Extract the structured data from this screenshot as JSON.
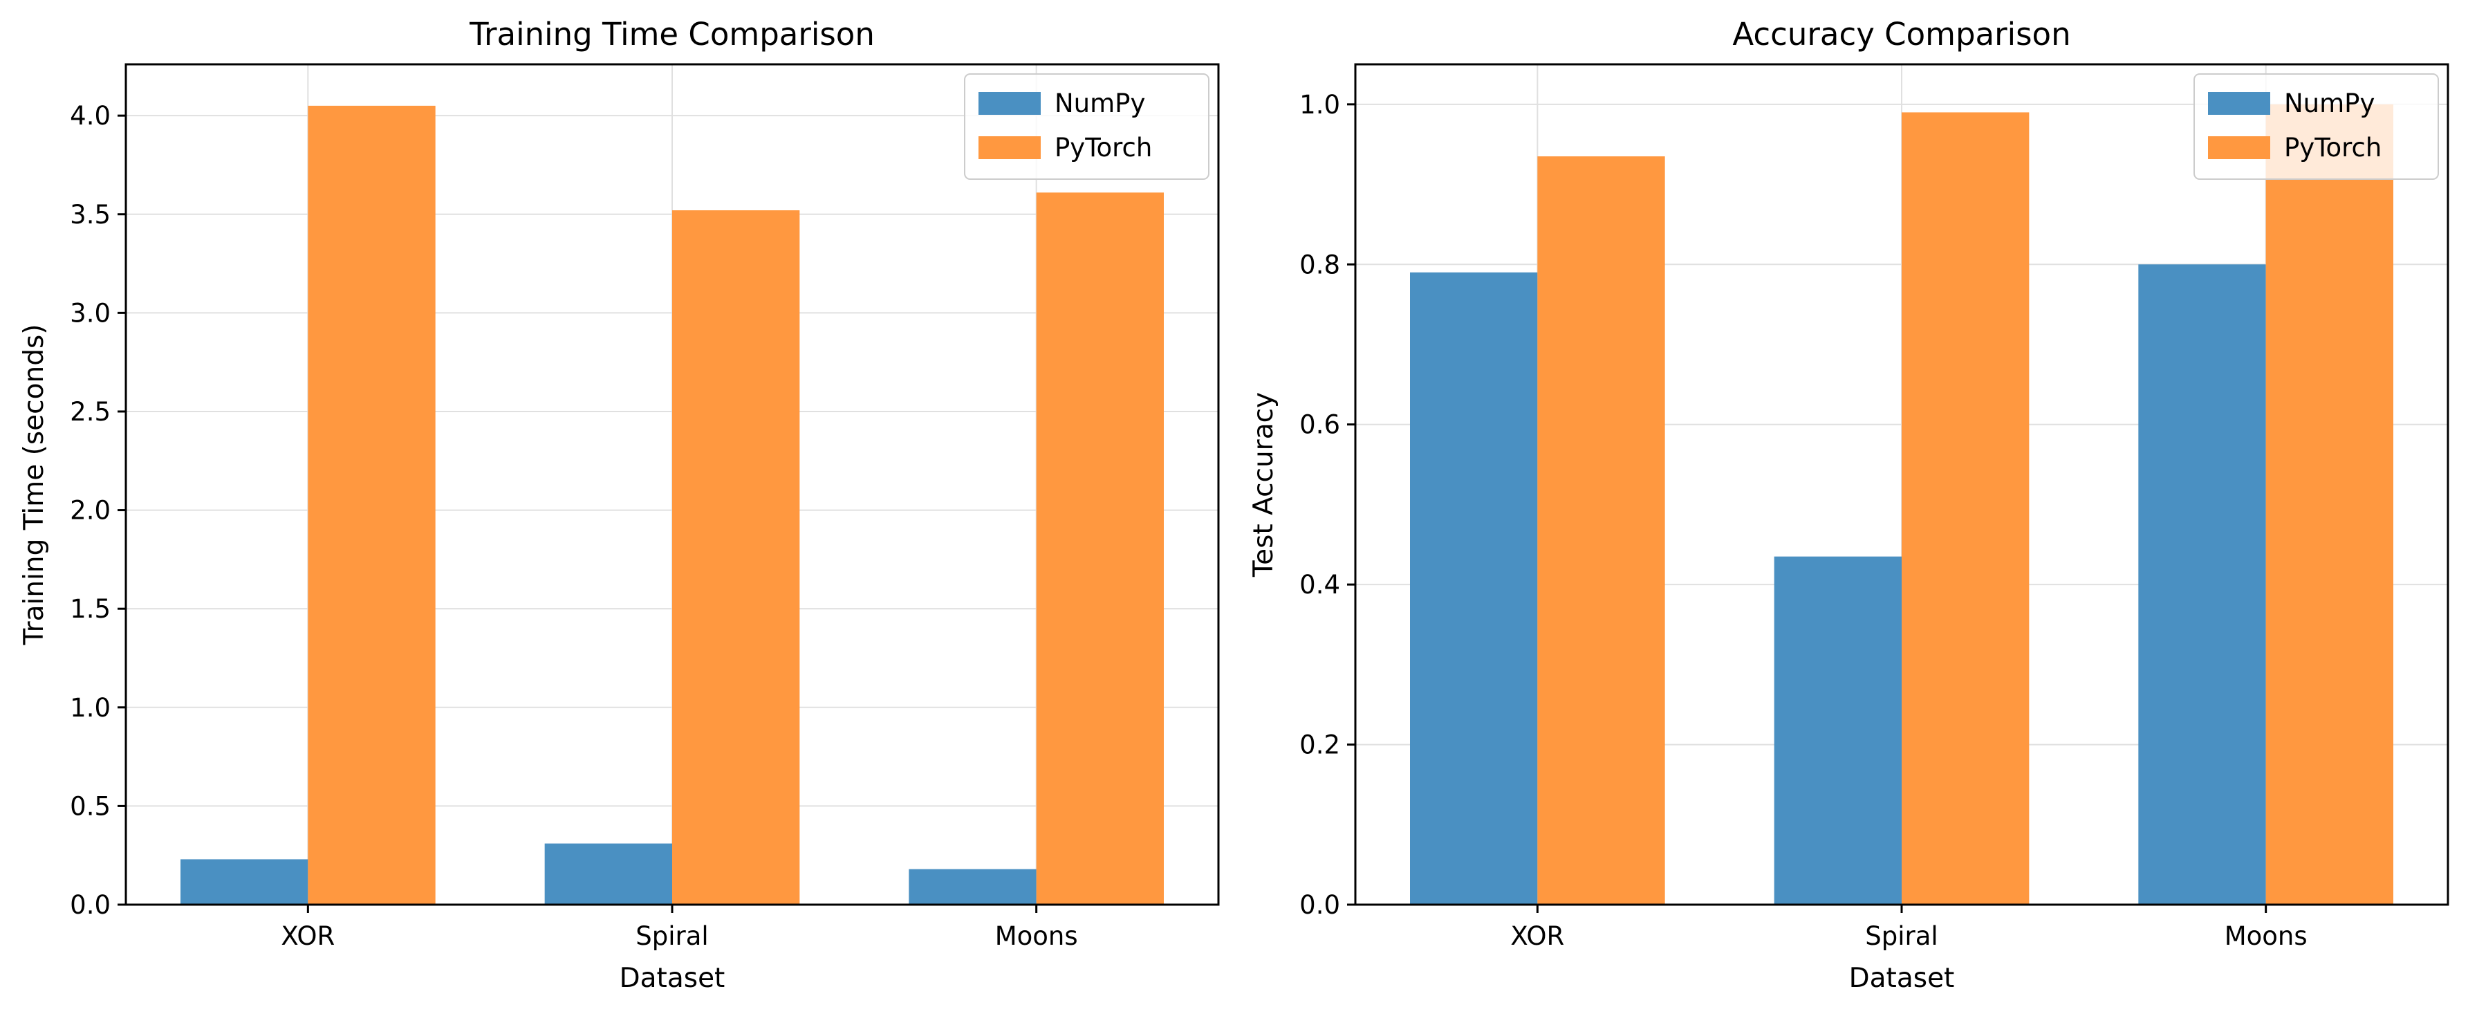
{
  "chart_data": [
    {
      "type": "bar",
      "title": "Training Time Comparison",
      "xlabel": "Dataset",
      "ylabel": "Training Time (seconds)",
      "categories": [
        "XOR",
        "Spiral",
        "Moons"
      ],
      "series": [
        {
          "name": "NumPy",
          "values": [
            0.23,
            0.31,
            0.18
          ],
          "color": "#4a90c2"
        },
        {
          "name": "PyTorch",
          "values": [
            4.05,
            3.52,
            3.61
          ],
          "color": "#ff9840"
        }
      ],
      "ylim": [
        0,
        4.26
      ],
      "yticks": [
        0.0,
        0.5,
        1.0,
        1.5,
        2.0,
        2.5,
        3.0,
        3.5,
        4.0
      ],
      "ytick_labels": [
        "0.0",
        "0.5",
        "1.0",
        "1.5",
        "2.0",
        "2.5",
        "3.0",
        "3.5",
        "4.0"
      ],
      "grid": true,
      "legend_position": "top-right"
    },
    {
      "type": "bar",
      "title": "Accuracy Comparison",
      "xlabel": "Dataset",
      "ylabel": "Test Accuracy",
      "categories": [
        "XOR",
        "Spiral",
        "Moons"
      ],
      "series": [
        {
          "name": "NumPy",
          "values": [
            0.79,
            0.435,
            0.8
          ],
          "color": "#4a90c2"
        },
        {
          "name": "PyTorch",
          "values": [
            0.935,
            0.99,
            1.0
          ],
          "color": "#ff9840"
        }
      ],
      "ylim": [
        0,
        1.05
      ],
      "yticks": [
        0.0,
        0.2,
        0.4,
        0.6,
        0.8,
        1.0
      ],
      "ytick_labels": [
        "0.0",
        "0.2",
        "0.4",
        "0.6",
        "0.8",
        "1.0"
      ],
      "grid": true,
      "legend_position": "top-right"
    }
  ]
}
